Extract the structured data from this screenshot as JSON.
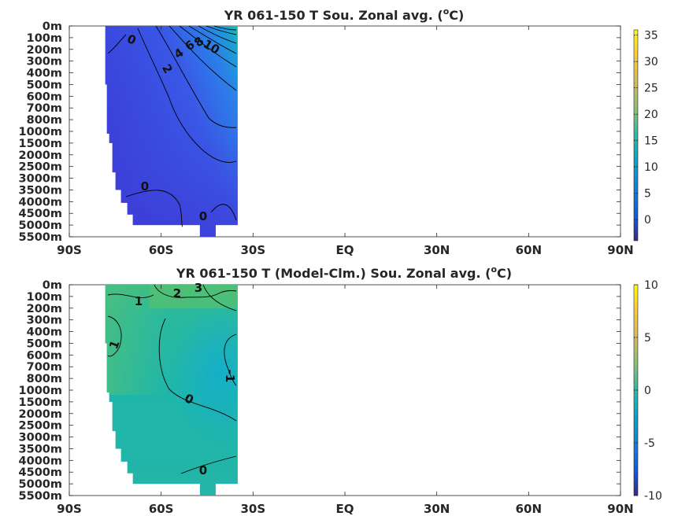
{
  "chart_data": [
    {
      "type": "heatmap",
      "title_prefix": "YR 061-150 T Sou. Zonal avg. (",
      "title_sup": "o",
      "title_suffix": "C)",
      "x_ticks": [
        "90S",
        "60S",
        "30S",
        "EQ",
        "30N",
        "60N",
        "90N"
      ],
      "x_values": [
        -90,
        -60,
        -30,
        0,
        30,
        60,
        90
      ],
      "y_ticks": [
        "0m",
        "100m",
        "200m",
        "300m",
        "400m",
        "500m",
        "600m",
        "700m",
        "800m",
        "1000m",
        "1500m",
        "2000m",
        "2500m",
        "3000m",
        "3500m",
        "4000m",
        "4500m",
        "5000m",
        "5500m"
      ],
      "data_extent_lat": [
        -78,
        -35
      ],
      "colorbar": {
        "range": [
          -4,
          36
        ],
        "ticks": [
          0,
          5,
          10,
          15,
          20,
          25,
          30,
          35
        ],
        "tick_labels": [
          "0",
          "5",
          "10",
          "15",
          "20",
          "25",
          "30",
          "35"
        ]
      },
      "contour_labels": [
        "0",
        "2",
        "4",
        "6",
        "8",
        "10",
        "0",
        "0"
      ]
    },
    {
      "type": "heatmap",
      "title_prefix": "YR 061-150 T (Model-Clm.) Sou. Zonal avg. (",
      "title_sup": "o",
      "title_suffix": "C)",
      "x_ticks": [
        "90S",
        "60S",
        "30S",
        "EQ",
        "30N",
        "60N",
        "90N"
      ],
      "x_values": [
        -90,
        -60,
        -30,
        0,
        30,
        60,
        90
      ],
      "y_ticks": [
        "0m",
        "100m",
        "200m",
        "300m",
        "400m",
        "500m",
        "600m",
        "700m",
        "800m",
        "1000m",
        "1500m",
        "2000m",
        "2500m",
        "3000m",
        "3500m",
        "4000m",
        "4500m",
        "5000m",
        "5500m"
      ],
      "data_extent_lat": [
        -78,
        -35
      ],
      "colorbar": {
        "range": [
          -10,
          10
        ],
        "ticks": [
          -10,
          -5,
          0,
          5,
          10
        ],
        "tick_labels": [
          "-10",
          "-5",
          "0",
          "5",
          "10"
        ]
      },
      "contour_labels": [
        "3",
        "2",
        "1",
        "1",
        "-1",
        "0",
        "0"
      ]
    }
  ]
}
